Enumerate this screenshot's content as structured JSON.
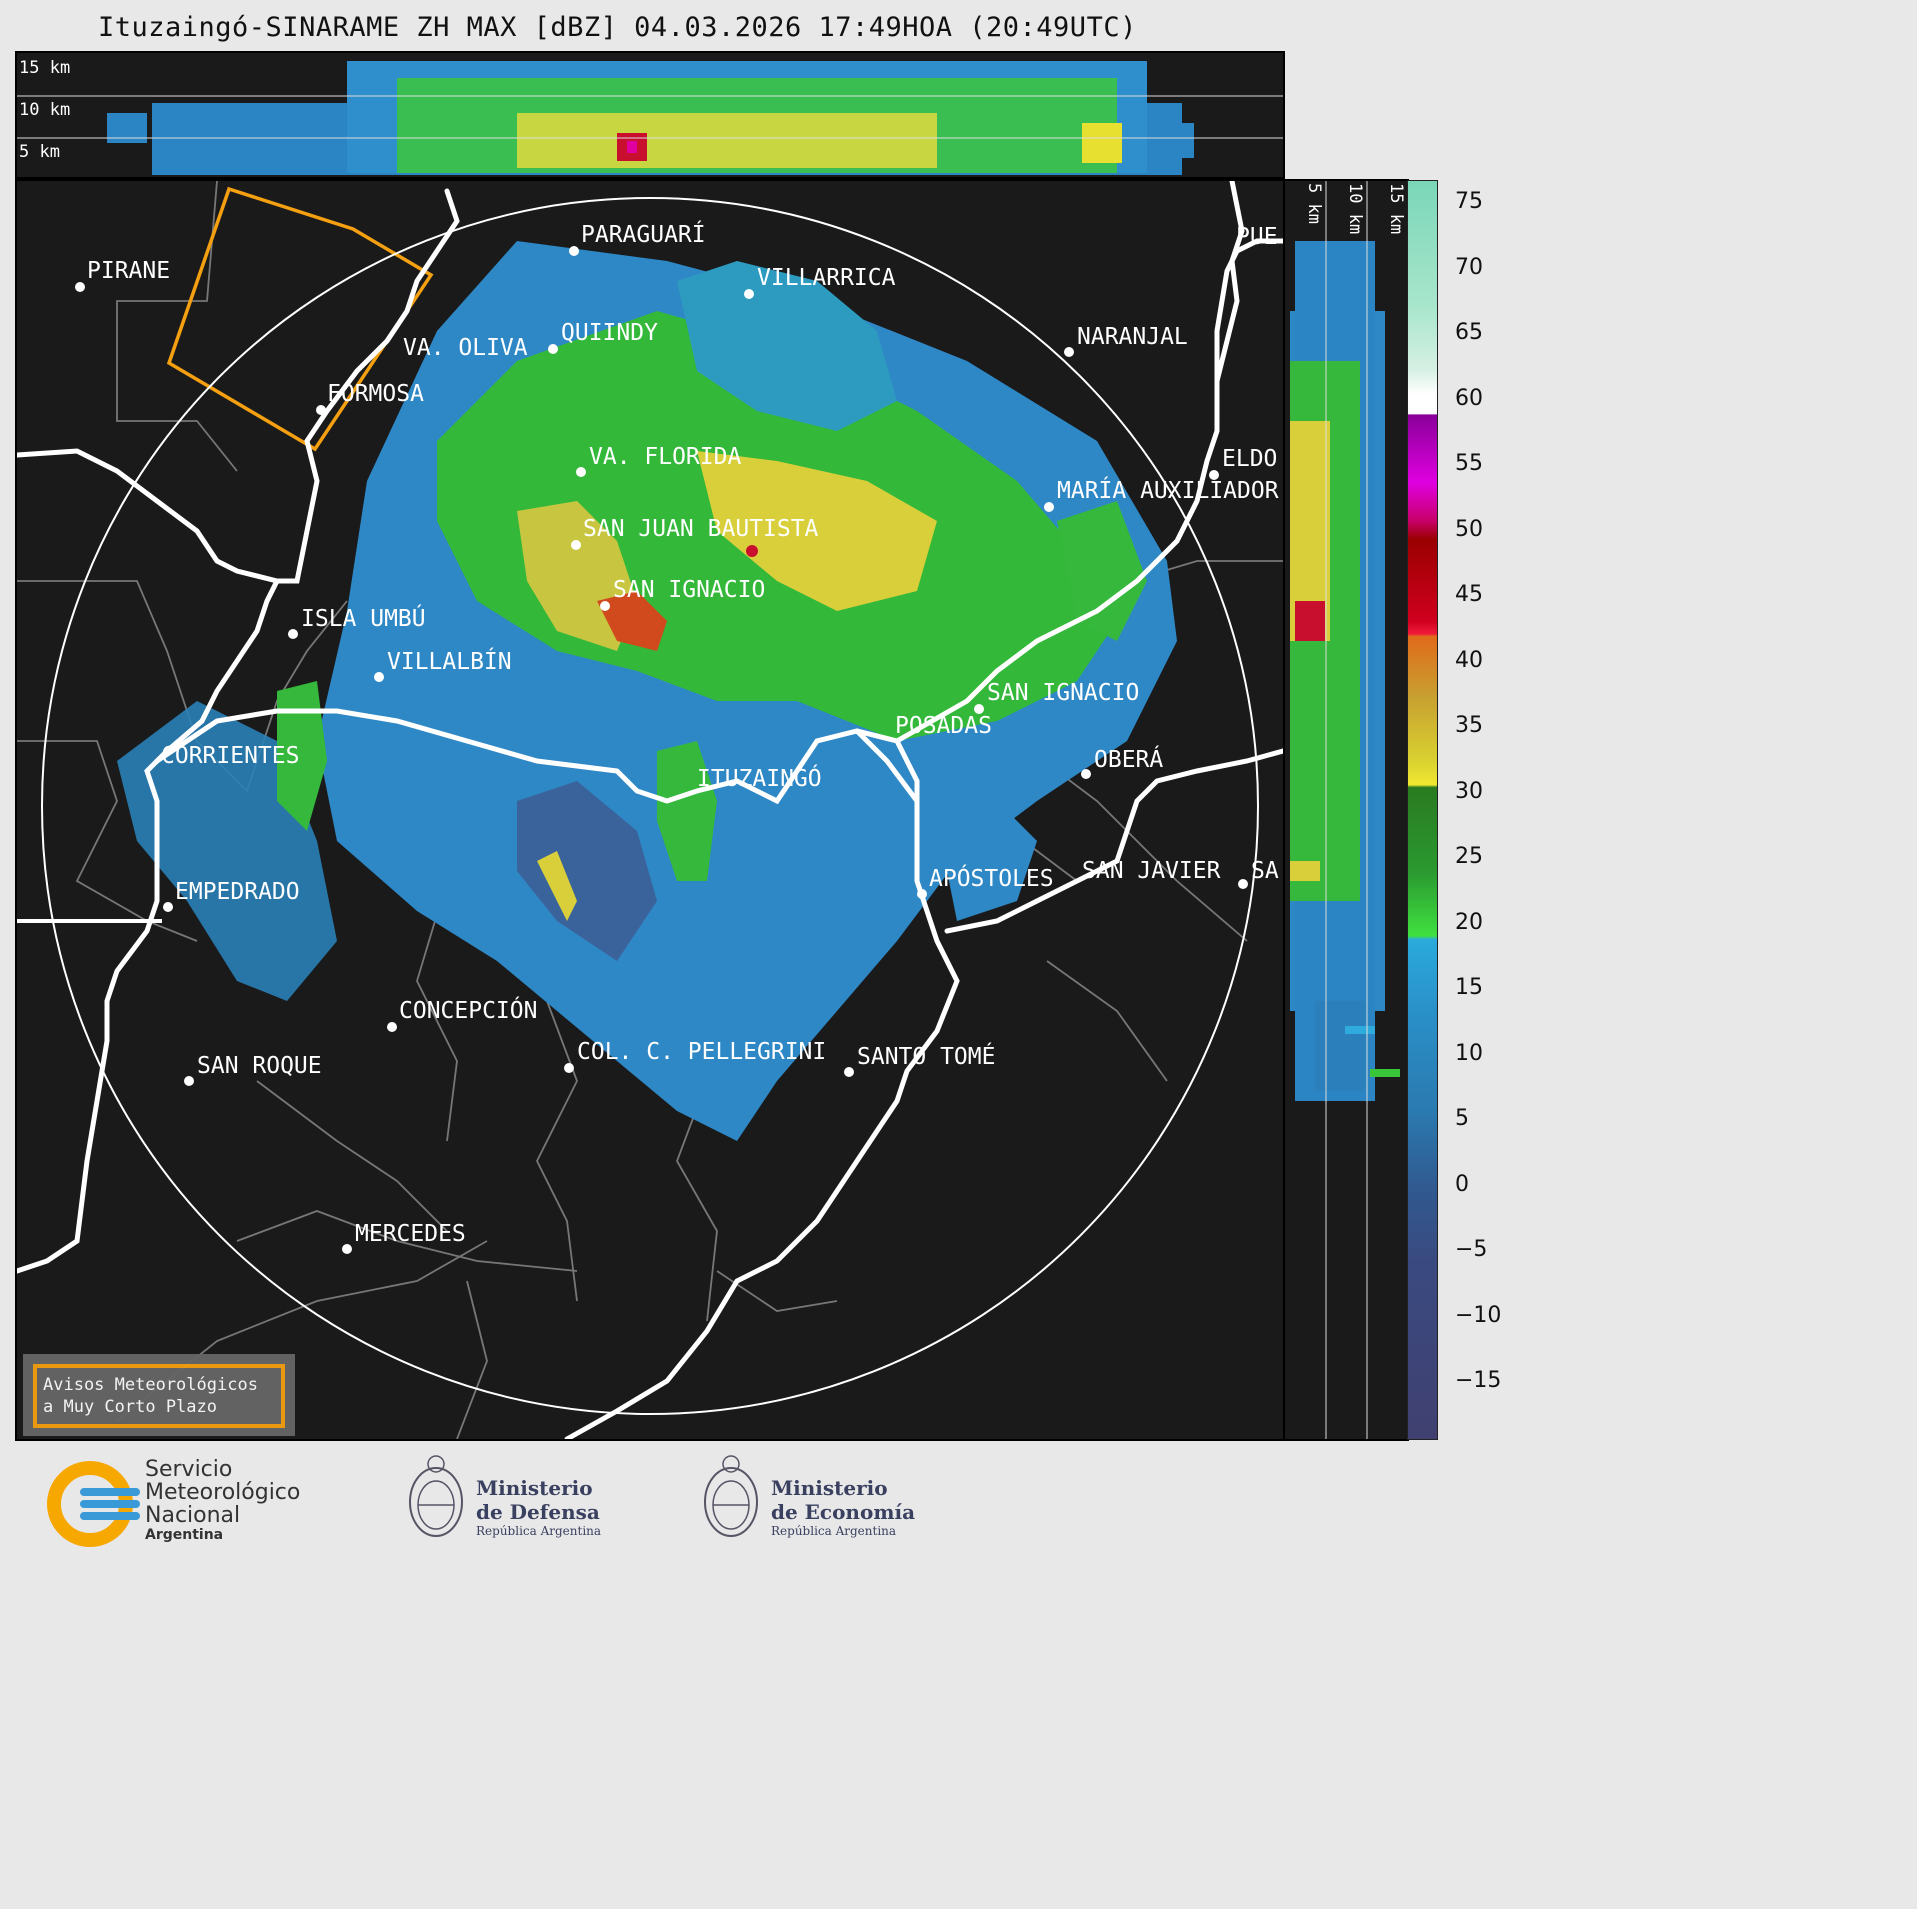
{
  "title": "Ituzaingó-SINARAME ZH MAX [dBZ] 04.03.2026 17:49HOA (20:49UTC)",
  "top_section": {
    "heights": [
      "15 km",
      "10 km",
      "5 km"
    ]
  },
  "side_section": {
    "heights": [
      "5 km",
      "10 km",
      "15 km"
    ]
  },
  "cities": [
    {
      "name": "PIRANE"
    },
    {
      "name": "PARAGUARÍ"
    },
    {
      "name": "VILLARRICA"
    },
    {
      "name": "QUIINDY"
    },
    {
      "name": "VA. OLIVA"
    },
    {
      "name": "FORMOSA"
    },
    {
      "name": "NARANJAL"
    },
    {
      "name": "PUE"
    },
    {
      "name": "VA. FLORIDA"
    },
    {
      "name": "ELDO"
    },
    {
      "name": "MARÍA AUXILIADOR"
    },
    {
      "name": "SAN JUAN BAUTISTA"
    },
    {
      "name": "SAN IGNACIO"
    },
    {
      "name": "ISLA UMBÚ"
    },
    {
      "name": "VILLALBÍN"
    },
    {
      "name": "SAN IGNACIO"
    },
    {
      "name": "POSADAS"
    },
    {
      "name": "CORRIENTES"
    },
    {
      "name": "ITUZAINGÓ"
    },
    {
      "name": "OBERÁ"
    },
    {
      "name": "EMPEDRADO"
    },
    {
      "name": "APÓSTOLES"
    },
    {
      "name": "SAN JAVIER"
    },
    {
      "name": "SA"
    },
    {
      "name": "CONCEPCIÓN"
    },
    {
      "name": "COL. C. PELLEGRINI"
    },
    {
      "name": "SANTO TOMÉ"
    },
    {
      "name": "SAN ROQUE"
    },
    {
      "name": "MERCEDES"
    }
  ],
  "legend_box": {
    "line1": "Avisos Meteorológicos",
    "line2": "a Muy Corto Plazo"
  },
  "colorbar": {
    "unit": "dBZ",
    "ticks": [
      "75",
      "70",
      "65",
      "60",
      "55",
      "50",
      "45",
      "40",
      "35",
      "30",
      "25",
      "20",
      "15",
      "10",
      "5",
      "0",
      "−5",
      "−10",
      "−15"
    ]
  },
  "logos": {
    "smn": {
      "line1": "Servicio",
      "line2": "Meteorológico",
      "line3": "Nacional",
      "line4": "Argentina"
    },
    "defensa": {
      "line1": "Ministerio",
      "line2": "de Defensa",
      "line3": "República Argentina"
    },
    "economia": {
      "line1": "Ministerio",
      "line2": "de Economía",
      "line3": "República Argentina"
    }
  },
  "colors": {
    "warning_polygon": "#f5a010",
    "background": "#1a1a1a",
    "page": "#e8e8e8"
  }
}
